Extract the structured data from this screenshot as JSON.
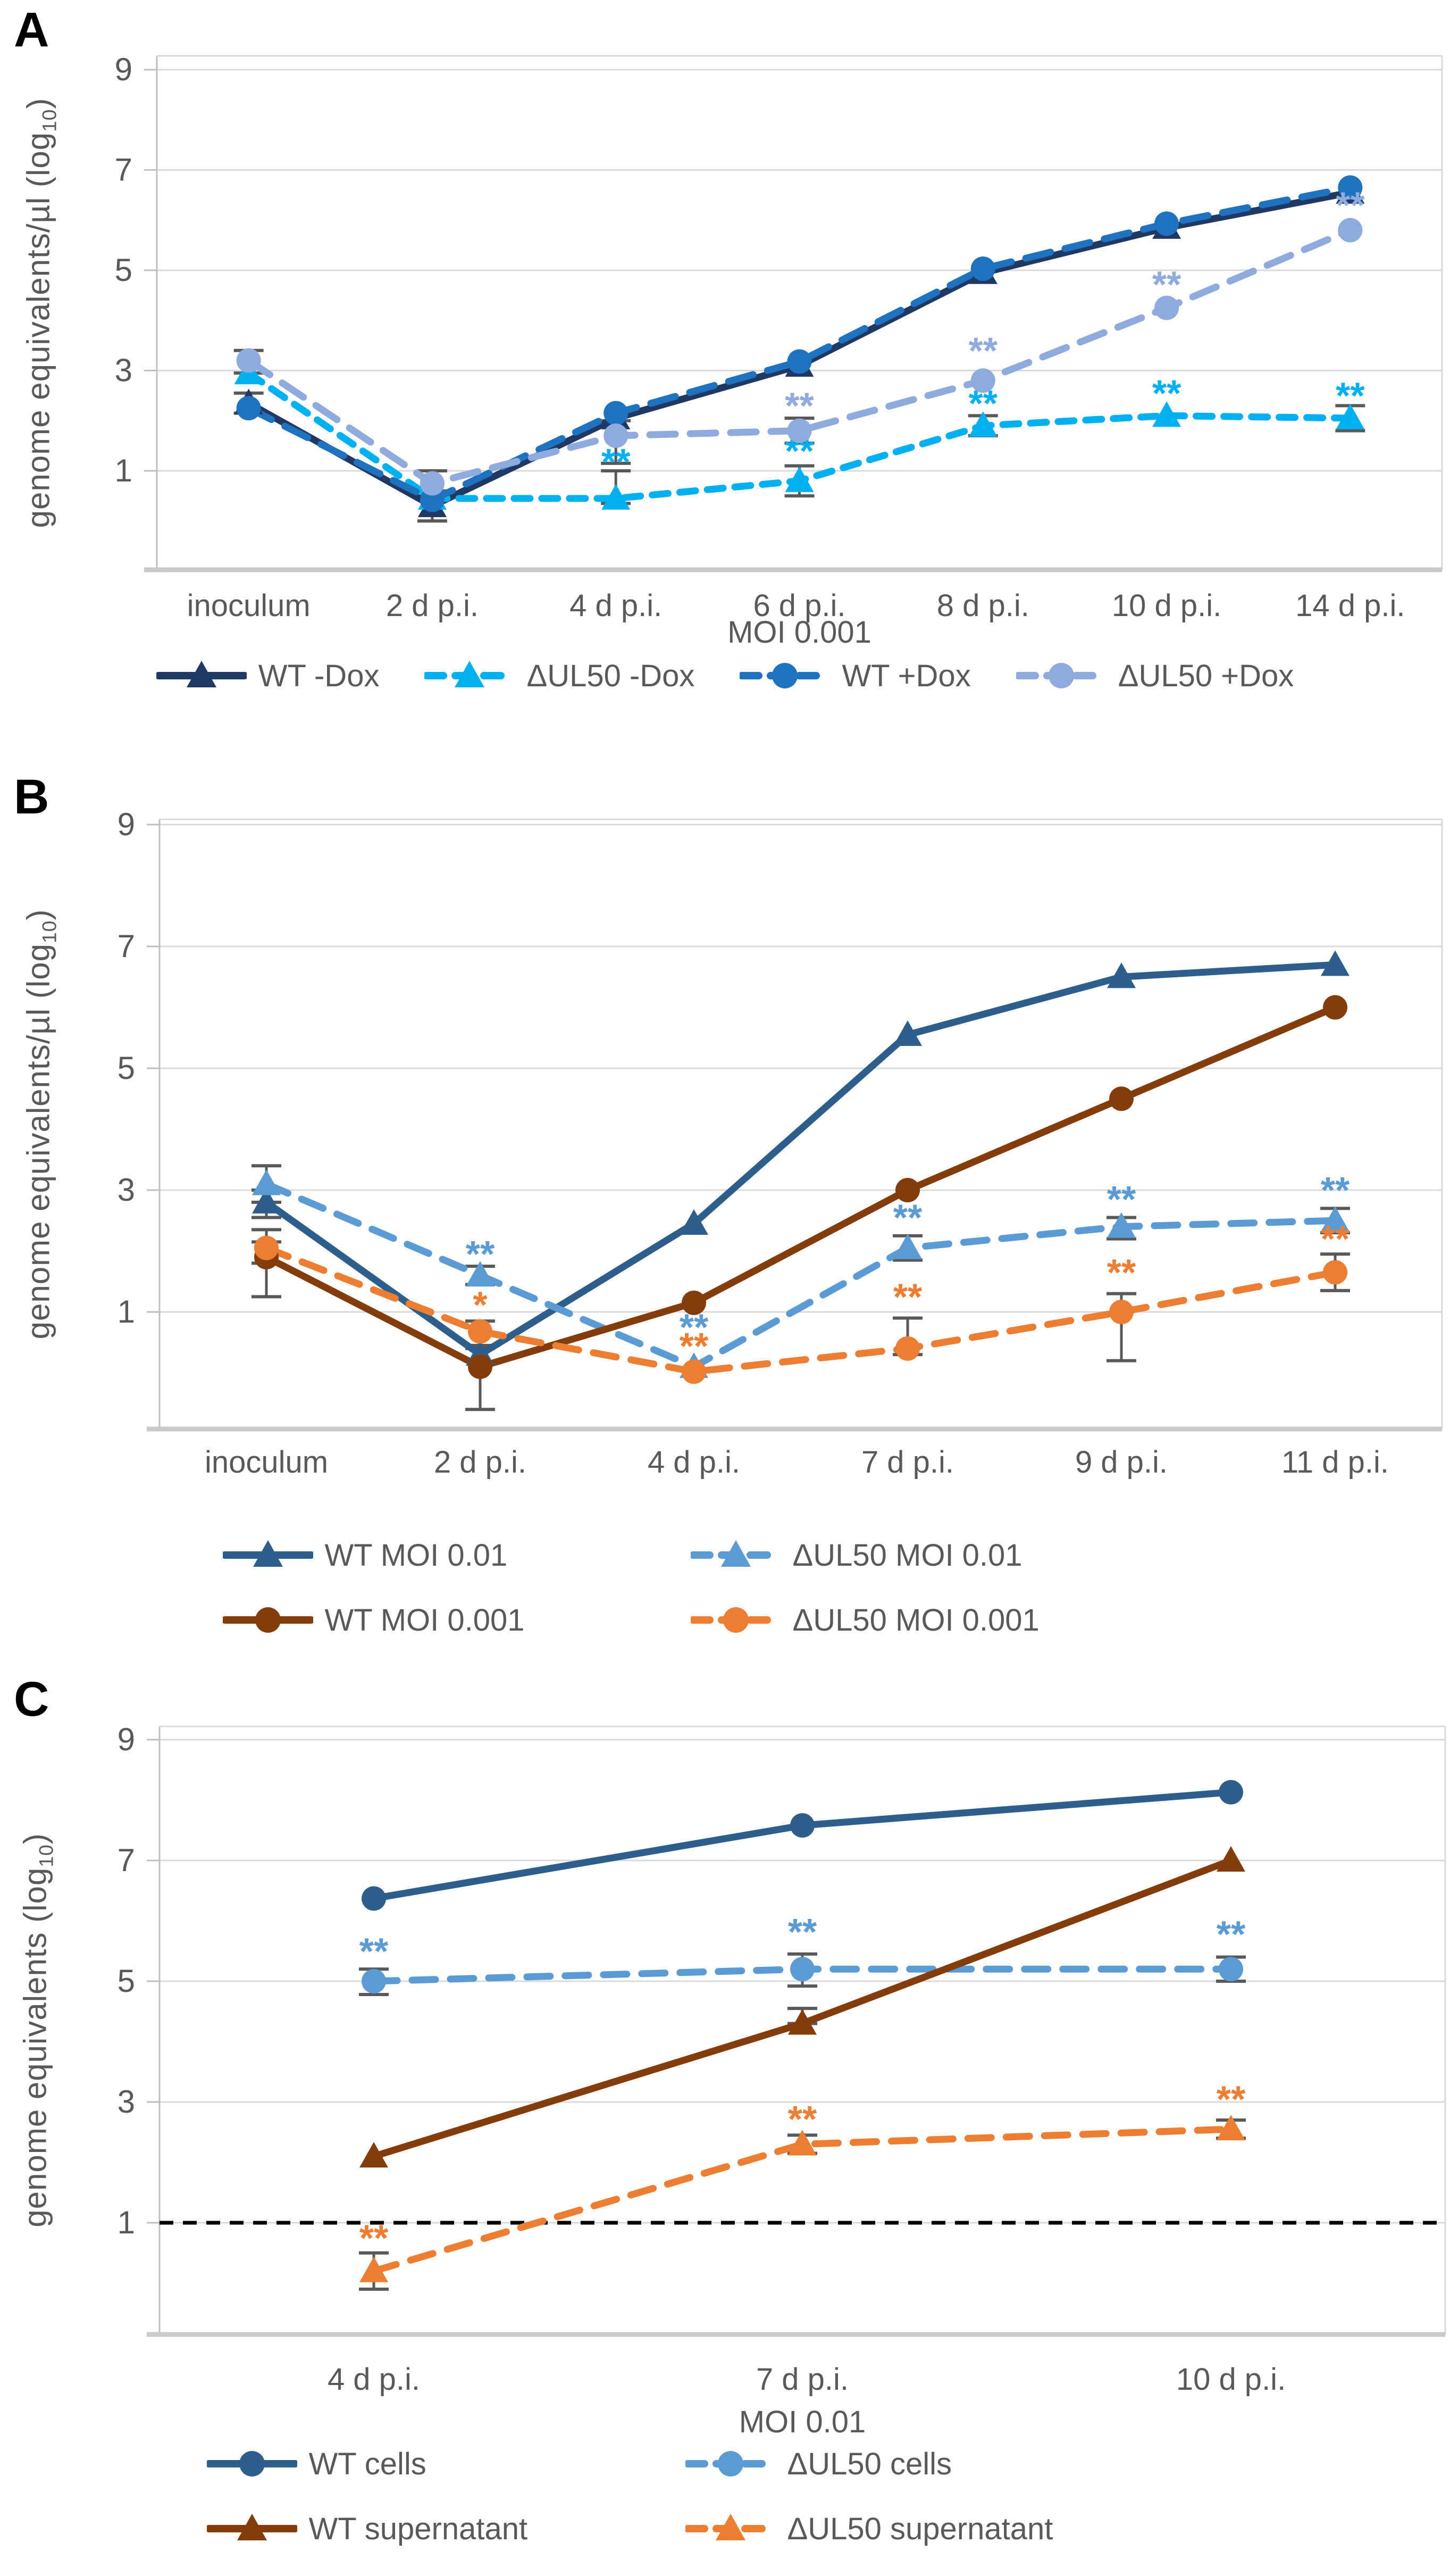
{
  "page": {
    "background": "#FFFFFF"
  },
  "chart_data": [
    {
      "type": "line",
      "panel_label": "A",
      "title": "",
      "xlabel": "MOI 0.001",
      "ylabel": "genome equivalents/µl (log10)",
      "ylabel_parts": {
        "pre": "genome equivalents/µl (log",
        "sub": "10",
        "post": ")"
      },
      "ylim": [
        -1,
        9.3
      ],
      "yticks": [
        9,
        7,
        5,
        3,
        1
      ],
      "grid": true,
      "legend_position": "bottom",
      "categories": [
        "inoculum",
        "2 d p.i.",
        "4 d p.i.",
        "6 d p.i.",
        "8 d p.i.",
        "10 d p.i.",
        "14 d p.i."
      ],
      "series": [
        {
          "name": "WT -Dox",
          "color": "#1F3864",
          "line": "solid",
          "marker": "triangle",
          "values": [
            2.35,
            0.3,
            2.05,
            3.1,
            4.95,
            5.85,
            6.55
          ],
          "err_lo": [
            2.15,
            0.0,
            null,
            null,
            null,
            null,
            null
          ],
          "err_hi": [
            2.55,
            0.6,
            null,
            null,
            null,
            null,
            null
          ],
          "sig": [
            "",
            "",
            "",
            "",
            "",
            "",
            ""
          ],
          "sig_y": [
            null,
            null,
            null,
            null,
            null,
            null,
            null
          ]
        },
        {
          "name": "ΔUL50 -Dox",
          "color": "#00B0F0",
          "line": "dashed",
          "dash": [
            30,
            22
          ],
          "marker": "triangle",
          "values": [
            2.95,
            0.45,
            0.45,
            0.8,
            1.9,
            2.1,
            2.05
          ],
          "err_lo": [
            null,
            null,
            0.35,
            0.5,
            1.7,
            null,
            1.8
          ],
          "err_hi": [
            null,
            null,
            1.0,
            1.1,
            2.1,
            null,
            2.3
          ],
          "sig": [
            "",
            "",
            "**",
            "**",
            "**",
            "**",
            "**"
          ],
          "sig_y": [
            null,
            null,
            1.18,
            1.4,
            2.35,
            2.55,
            2.5
          ]
        },
        {
          "name": "WT +Dox",
          "color": "#1F72C0",
          "line": "dashed",
          "dash": [
            48,
            28
          ],
          "marker": "circle",
          "values": [
            2.25,
            0.42,
            2.15,
            3.18,
            5.03,
            5.93,
            6.65
          ],
          "err_lo": [
            null,
            null,
            null,
            null,
            null,
            null,
            null
          ],
          "err_hi": [
            null,
            null,
            null,
            null,
            null,
            null,
            null
          ],
          "sig": [
            "",
            "",
            "",
            "",
            "",
            "",
            ""
          ],
          "sig_y": [
            null,
            null,
            null,
            null,
            null,
            null,
            null
          ]
        },
        {
          "name": "ΔUL50 +Dox",
          "color": "#8FAADC",
          "line": "dashed",
          "dash": [
            48,
            28
          ],
          "marker": "circle",
          "values": [
            3.2,
            0.75,
            1.7,
            1.8,
            2.8,
            4.25,
            5.8
          ],
          "err_lo": [
            2.95,
            0.5,
            1.15,
            1.55,
            null,
            null,
            null
          ],
          "err_hi": [
            3.4,
            1.0,
            2.0,
            2.05,
            null,
            null,
            null
          ],
          "sig": [
            "",
            "",
            "",
            "**",
            "**",
            "**",
            "**"
          ],
          "sig_y": [
            null,
            null,
            null,
            2.3,
            3.4,
            4.72,
            6.3
          ]
        }
      ],
      "legend_rows": [
        [
          0,
          1,
          2,
          3
        ]
      ]
    },
    {
      "type": "line",
      "panel_label": "B",
      "title": "",
      "xlabel": "",
      "ylabel": "genome equivalents/µl (log10)",
      "ylabel_parts": {
        "pre": "genome equivalents/µl (log",
        "sub": "10",
        "post": ")"
      },
      "ylim": [
        -0.9,
        9.2
      ],
      "yticks": [
        9,
        7,
        5,
        3,
        1
      ],
      "grid": true,
      "legend_position": "bottom",
      "categories": [
        "inoculum",
        "2 d p.i.",
        "4 d p.i.",
        "7 d p.i.",
        "9 d p.i.",
        "11 d p.i."
      ],
      "series": [
        {
          "name": "WT MOI 0.01",
          "color": "#2E5E8C",
          "line": "solid",
          "marker": "triangle",
          "values": [
            2.8,
            0.3,
            2.45,
            5.55,
            6.5,
            6.7
          ],
          "err_lo": [
            2.55,
            null,
            null,
            null,
            null,
            null
          ],
          "err_hi": [
            3.0,
            null,
            null,
            null,
            null,
            null
          ],
          "sig": [
            "",
            "",
            "",
            "",
            "",
            ""
          ],
          "sig_y": [
            null,
            null,
            null,
            null,
            null,
            null
          ]
        },
        {
          "name": "ΔUL50 MOI 0.01",
          "color": "#5B9BD5",
          "line": "dashed",
          "dash": [
            44,
            28
          ],
          "marker": "triangle",
          "values": [
            3.1,
            1.6,
            0.1,
            2.05,
            2.4,
            2.5
          ],
          "err_lo": [
            2.8,
            1.45,
            null,
            1.85,
            2.2,
            2.3
          ],
          "err_hi": [
            3.4,
            1.75,
            null,
            2.25,
            2.55,
            2.7
          ],
          "sig": [
            "",
            "**",
            "**",
            "**",
            "**",
            "**"
          ],
          "sig_y": [
            null,
            1.95,
            0.75,
            2.55,
            2.85,
            3.0
          ]
        },
        {
          "name": "WT MOI 0.001",
          "color": "#843C0C",
          "line": "solid",
          "marker": "circle",
          "values": [
            1.9,
            0.1,
            1.15,
            3.0,
            4.5,
            6.0
          ],
          "err_lo": [
            1.25,
            -0.6,
            null,
            null,
            null,
            null
          ],
          "err_hi": [
            2.15,
            0.4,
            null,
            null,
            null,
            null
          ],
          "sig": [
            "",
            "",
            "",
            "",
            "",
            ""
          ],
          "sig_y": [
            null,
            null,
            null,
            null,
            null,
            null
          ]
        },
        {
          "name": "ΔUL50 MOI 0.001",
          "color": "#ED7D31",
          "line": "dashed",
          "dash": [
            44,
            28
          ],
          "marker": "circle",
          "values": [
            2.05,
            0.68,
            0.02,
            0.4,
            1.0,
            1.65
          ],
          "err_lo": [
            1.8,
            0.45,
            null,
            0.3,
            0.2,
            1.35
          ],
          "err_hi": [
            2.35,
            0.85,
            null,
            0.9,
            1.3,
            1.95
          ],
          "sig": [
            "",
            "*",
            "**",
            "**",
            "**",
            "**"
          ],
          "sig_y": [
            null,
            1.12,
            0.44,
            1.25,
            1.65,
            2.2
          ]
        }
      ],
      "legend_rows": [
        [
          0,
          1
        ],
        [
          2,
          3
        ]
      ]
    },
    {
      "type": "line",
      "panel_label": "C",
      "title": "",
      "xlabel": "MOI 0.01",
      "ylabel": "genome equivalents (log10)",
      "ylabel_parts": {
        "pre": "genome equivalents (log",
        "sub": "10",
        "post": ")"
      },
      "ylim": [
        -0.9,
        9.2
      ],
      "yticks": [
        9,
        7,
        5,
        3,
        1
      ],
      "grid": true,
      "legend_position": "bottom",
      "reference_line": {
        "value": 1,
        "style": "dashed",
        "color": "#000000",
        "name": "detection-limit"
      },
      "categories": [
        "4 d p.i.",
        "7 d p.i.",
        "10 d p.i."
      ],
      "series": [
        {
          "name": "WT cells",
          "color": "#2E5E8C",
          "line": "solid",
          "marker": "circle",
          "values": [
            6.37,
            7.58,
            8.13
          ],
          "err_lo": [
            null,
            null,
            null
          ],
          "err_hi": [
            null,
            null,
            null
          ],
          "sig": [
            "",
            "",
            ""
          ],
          "sig_y": [
            null,
            null,
            null
          ]
        },
        {
          "name": "ΔUL50 cells",
          "color": "#5B9BD5",
          "line": "dashed",
          "dash": [
            44,
            28
          ],
          "marker": "circle",
          "values": [
            5.0,
            5.2,
            5.2
          ],
          "err_lo": [
            4.78,
            4.92,
            5.0
          ],
          "err_hi": [
            5.2,
            5.45,
            5.4
          ],
          "sig": [
            "**",
            "**",
            "**"
          ],
          "sig_y": [
            5.5,
            5.82,
            5.78
          ]
        },
        {
          "name": "WT supernatant",
          "color": "#843C0C",
          "line": "solid",
          "marker": "triangle",
          "values": [
            2.1,
            4.3,
            7.0
          ],
          "err_lo": [
            null,
            4.3,
            null
          ],
          "err_hi": [
            null,
            4.55,
            null
          ],
          "sig": [
            "",
            "",
            ""
          ],
          "sig_y": [
            null,
            null,
            null
          ]
        },
        {
          "name": "ΔUL50 supernatant",
          "color": "#ED7D31",
          "line": "dashed",
          "dash": [
            44,
            28
          ],
          "marker": "triangle",
          "values": [
            0.2,
            2.3,
            2.55
          ],
          "err_lo": [
            -0.1,
            2.15,
            2.4
          ],
          "err_hi": [
            0.5,
            2.45,
            2.7
          ],
          "sig": [
            "**",
            "**",
            "**"
          ],
          "sig_y": [
            0.75,
            2.72,
            3.05
          ]
        }
      ],
      "legend_rows": [
        [
          0,
          1
        ],
        [
          2,
          3
        ]
      ]
    }
  ],
  "style_colors": {
    "axis_text": "#595959",
    "gridline": "#D9D9D9",
    "axis_line": "#BFBFBF",
    "error_bar": "#595959"
  }
}
